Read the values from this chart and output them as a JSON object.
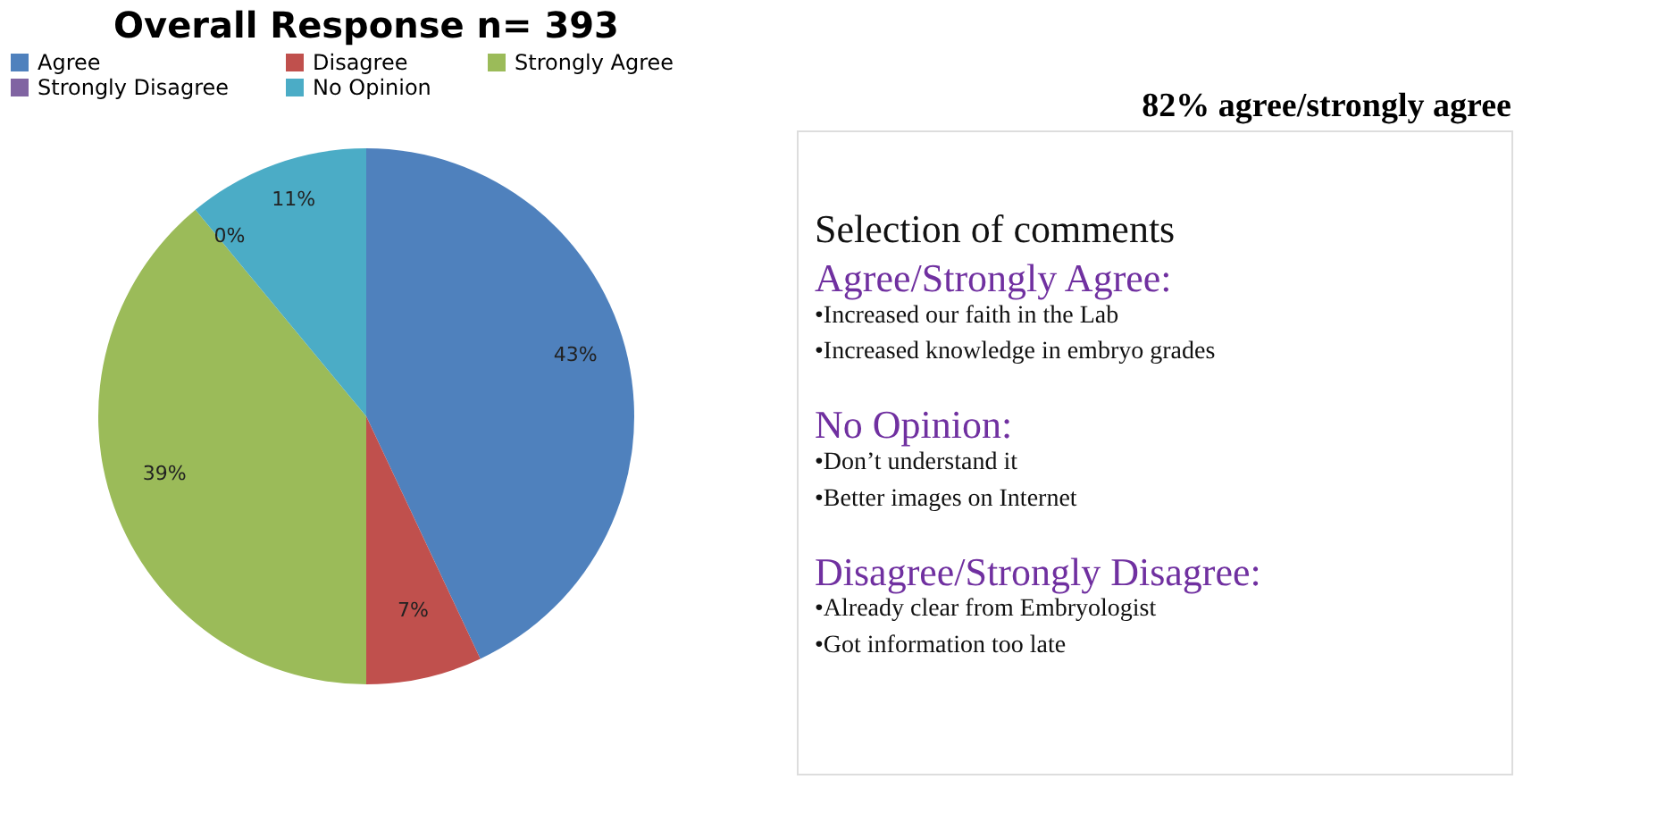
{
  "chart_data": [
    {
      "type": "pie",
      "title": "Overall Response n= 393",
      "categories": [
        "Agree",
        "Disagree",
        "Strongly Agree",
        "Strongly Disagree",
        "No Opinion"
      ],
      "values": [
        43,
        7,
        39,
        0,
        11
      ],
      "value_labels": [
        "43%",
        "7%",
        "39%",
        "0%",
        "11%"
      ],
      "colors": [
        "#4f81bd",
        "#c0504d",
        "#9bbb59",
        "#8064a2",
        "#4bacc6"
      ],
      "legend": "top left"
    },
    {
      "type": "other",
      "title": "82% agree/strongly agree",
      "annotations": [
        "Selection of comments",
        "Agree/Strongly Agree:",
        "•Increased our faith in the Lab",
        "•Increased knowledge in embryo grades",
        "No Opinion:",
        "•Don’t understand it",
        "•Better images on Internet",
        "Disagree/Strongly Disagree:",
        "•Already clear from Embryologist",
        "•Got information too late"
      ]
    }
  ]
}
